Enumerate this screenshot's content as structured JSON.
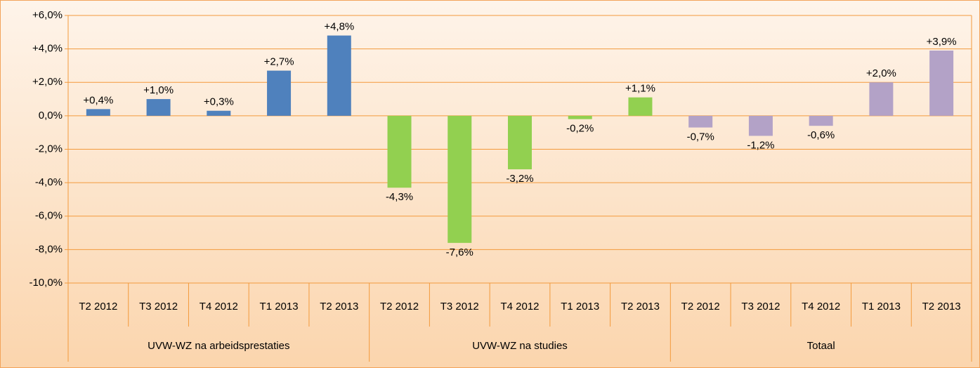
{
  "chart_data": {
    "type": "bar",
    "ylim": [
      -10,
      6
    ],
    "yticks": [
      {
        "value": 6,
        "label": "+6,0%"
      },
      {
        "value": 4,
        "label": "+4,0%"
      },
      {
        "value": 2,
        "label": "+2,0%"
      },
      {
        "value": 0,
        "label": "0,0%"
      },
      {
        "value": -2,
        "label": "-2,0%"
      },
      {
        "value": -4,
        "label": "-4,0%"
      },
      {
        "value": -6,
        "label": "-6,0%"
      },
      {
        "value": -8,
        "label": "-8,0%"
      },
      {
        "value": -10,
        "label": "-10,0%"
      }
    ],
    "grid": true,
    "series": [
      {
        "name": "UVW-WZ na arbeidsprestaties",
        "color": "#4f81bd",
        "categories": [
          "T2 2012",
          "T3 2012",
          "T4 2012",
          "T1 2013",
          "T2 2013"
        ],
        "values": [
          0.4,
          1.0,
          0.3,
          2.7,
          4.8
        ],
        "value_labels": [
          "+0,4%",
          "+1,0%",
          "+0,3%",
          "+2,7%",
          "+4,8%"
        ]
      },
      {
        "name": "UVW-WZ na studies",
        "color": "#92d050",
        "categories": [
          "T2 2012",
          "T3 2012",
          "T4 2012",
          "T1 2013",
          "T2 2013"
        ],
        "values": [
          -4.3,
          -7.6,
          -3.2,
          -0.2,
          1.1
        ],
        "value_labels": [
          "-4,3%",
          "-7,6%",
          "-3,2%",
          "-0,2%",
          "+1,1%"
        ]
      },
      {
        "name": "Totaal",
        "color": "#b3a2c7",
        "categories": [
          "T2 2012",
          "T3 2012",
          "T4 2012",
          "T1 2013",
          "T2 2013"
        ],
        "values": [
          -0.7,
          -1.2,
          -0.6,
          2.0,
          3.9
        ],
        "value_labels": [
          "-0,7%",
          "-1,2%",
          "-0,6%",
          "+2,0%",
          "+3,9%"
        ]
      }
    ]
  }
}
